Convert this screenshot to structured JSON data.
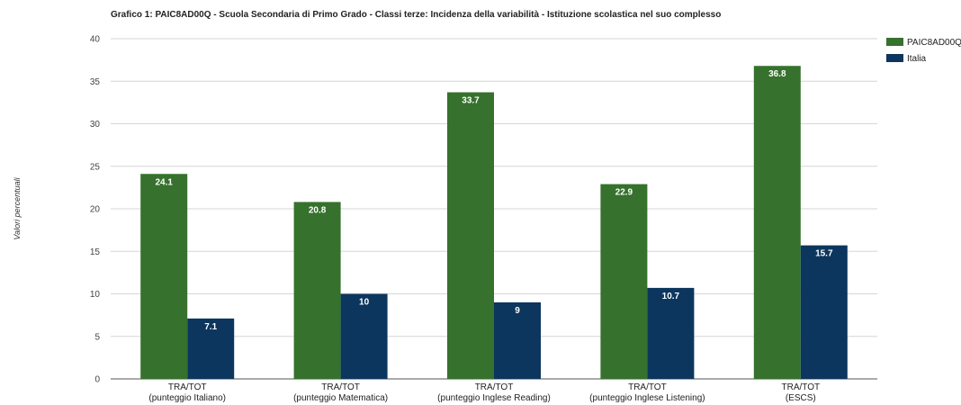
{
  "chart_data": {
    "type": "bar",
    "title": "Grafico 1: PAIC8AD00Q - Scuola Secondaria di Primo Grado - Classi terze: Incidenza della variabilità - Istituzione scolastica nel suo complesso",
    "ylabel": "Valori percentuali",
    "xlabel": "",
    "ylim": [
      0,
      40
    ],
    "yticks": [
      0,
      5,
      10,
      15,
      20,
      25,
      30,
      35,
      40
    ],
    "grid": true,
    "legend_position": "top-right",
    "categories": [
      [
        "TRA/TOT",
        "(punteggio Italiano)"
      ],
      [
        "TRA/TOT",
        "(punteggio Matematica)"
      ],
      [
        "TRA/TOT",
        "(punteggio Inglese Reading)"
      ],
      [
        "TRA/TOT",
        "(punteggio Inglese Listening)"
      ],
      [
        "TRA/TOT",
        "(ESCS)"
      ]
    ],
    "series": [
      {
        "name": "PAIC8AD00Q",
        "color": "#36712d",
        "values": [
          24.1,
          20.8,
          33.7,
          22.9,
          36.8
        ]
      },
      {
        "name": "Italia",
        "color": "#0c365e",
        "values": [
          7.1,
          10,
          9,
          10.7,
          15.7
        ]
      }
    ]
  }
}
